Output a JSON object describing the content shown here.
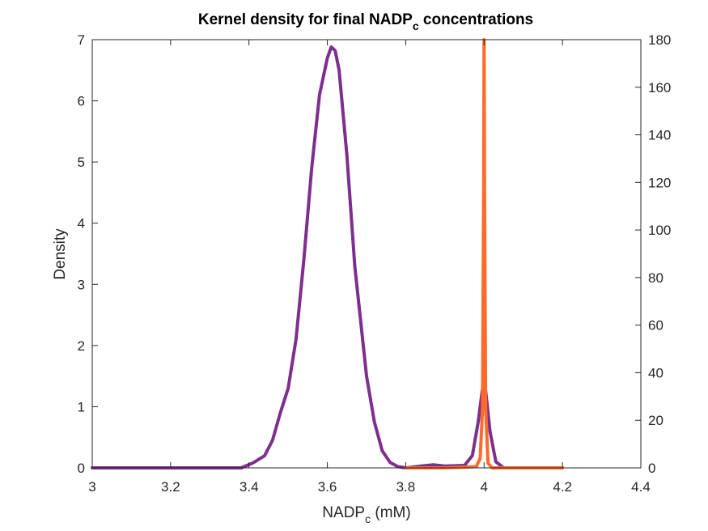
{
  "chart_data": {
    "type": "line",
    "title": "Kernel density for final NADP",
    "title_subscript": "c",
    "title_suffix": " concentrations",
    "xlabel": "NADP",
    "xlabel_subscript": "c",
    "xlabel_suffix": " (mM)",
    "ylabel_left": "Density",
    "ylabel_right": "",
    "xlim": [
      3,
      4.4
    ],
    "ylim_left": [
      0,
      7
    ],
    "ylim_right": [
      0,
      180
    ],
    "x_ticks": [
      "3",
      "3.2",
      "3.4",
      "3.6",
      "3.8",
      "4",
      "4.2",
      "4.4"
    ],
    "y_left_ticks": [
      "0",
      "1",
      "2",
      "3",
      "4",
      "5",
      "6",
      "7"
    ],
    "y_right_ticks": [
      "0",
      "20",
      "40",
      "60",
      "80",
      "100",
      "120",
      "140",
      "160",
      "180"
    ],
    "grid": false,
    "series": [
      {
        "axis": "left",
        "color": "#7E2F8E",
        "x": [
          3.0,
          3.2,
          3.38,
          3.41,
          3.44,
          3.46,
          3.48,
          3.5,
          3.52,
          3.54,
          3.56,
          3.58,
          3.6,
          3.61,
          3.62,
          3.63,
          3.65,
          3.67,
          3.7,
          3.72,
          3.74,
          3.76,
          3.78,
          3.8,
          3.84,
          3.87,
          3.9,
          3.95,
          3.97,
          3.985,
          3.995,
          4.0,
          4.005,
          4.015,
          4.03,
          4.05,
          4.2
        ],
        "y": [
          0,
          0,
          0,
          0.08,
          0.2,
          0.45,
          0.9,
          1.3,
          2.1,
          3.4,
          4.9,
          6.1,
          6.7,
          6.88,
          6.82,
          6.5,
          5.1,
          3.3,
          1.5,
          0.75,
          0.28,
          0.09,
          0.02,
          0,
          0.03,
          0.05,
          0.03,
          0.04,
          0.2,
          0.75,
          1.25,
          1.43,
          1.2,
          0.6,
          0.1,
          0,
          0
        ]
      },
      {
        "axis": "right",
        "color": "#FF6929",
        "x": [
          3.8,
          3.9,
          3.98,
          3.99,
          3.996,
          3.999,
          4.0,
          4.001,
          4.004,
          4.01,
          4.02,
          4.2
        ],
        "y": [
          0,
          0,
          0.5,
          4,
          25,
          120,
          180,
          120,
          25,
          2,
          0,
          0
        ]
      }
    ]
  }
}
